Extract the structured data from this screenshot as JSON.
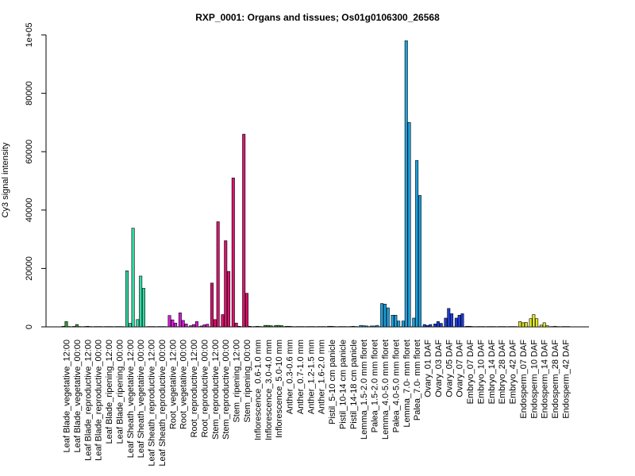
{
  "chart_data": {
    "type": "bar",
    "title": "RXP_0001: Organs and tissues; Os01g0106300_26568",
    "xlabel": "",
    "ylabel": "Cy3 signal intensity",
    "ylim": [
      0,
      100000
    ],
    "yticks": [
      "0",
      "20000",
      "40000",
      "60000",
      "80000",
      "1e+05"
    ],
    "ytick_values": [
      0,
      20000,
      40000,
      60000,
      80000,
      100000
    ],
    "grid": false,
    "legend": "none",
    "categories": [
      "Leaf Blade_vegetative_12:00",
      "Leaf Blade_vegetative_00:00",
      "Leaf Blade_reproductive_12:00",
      "Leaf Blade_reproductive_00:00",
      "Leaf Blade_ripening_12:00",
      "Leaf Blade_ripening_00:00",
      "Leaf Sheath_vegetative_12:00",
      "Leaf Sheath_vegetative_00:00",
      "Leaf Sheath_reproductive_12:00",
      "Leaf Sheath_reproductive_00:00",
      "Root_vegetative_12:00",
      "Root_vegetative_00:00",
      "Root_reproductive_12:00",
      "Root_reproductive_00:00",
      "Stem_reproductive_12:00",
      "Stem_reproductive_00:00",
      "Stem_ripening_12:00",
      "Stem_ripening_00:00",
      "Inflorescence_0.6-1.0 mm",
      "Inflorescence_3.0-4.0 mm",
      "Inflorescence_5.0-10 mm",
      "Anther_0.3-0.6 mm",
      "Anther_0.7-1.0 mm",
      "Anther_1.2-1.5 mm",
      "Anther_1.6-2.0 mm",
      "Pistil_5-10 cm panicle",
      "Pistil_10-14 cm panicle",
      "Pistil_14-18 cm panicle",
      "Lemma_1.5-2.0 mm floret",
      "Palea_1.5-2.0 mm floret",
      "Lemma_4.0-5.0 mm floret",
      "Palea_4.0-5.0 mm floret",
      "Lemma_7.0- mm floret",
      "Palea_7.0- mm floret",
      "Ovary_01 DAF",
      "Ovary_03 DAF",
      "Ovary_05 DAF",
      "Ovary_07 DAF",
      "Embryo_07 DAF",
      "Embryo_10 DAF",
      "Embryo_14 DAF",
      "Embryo_28 DAF",
      "Embryo_42 DAF",
      "Endosperm_07 DAF",
      "Endosperm_10 DAF",
      "Endosperm_14 DAF",
      "Endosperm_28 DAF",
      "Endosperm_42 DAF"
    ],
    "group_colors": [
      "#2e9b2e",
      "#2e9b2e",
      "#2e9b2e",
      "#2e9b2e",
      "#2e9b2e",
      "#2e9b2e",
      "#34d9a5",
      "#34d9a5",
      "#34d9a5",
      "#34d9a5",
      "#d21fd2",
      "#d21fd2",
      "#d21fd2",
      "#d21fd2",
      "#d8146f",
      "#d8146f",
      "#d8146f",
      "#d8146f",
      "#2e9b2e",
      "#2e9b2e",
      "#2e9b2e",
      "#2e9b2e",
      "#2e9b2e",
      "#2e9b2e",
      "#2e9b2e",
      "#2e9b2e",
      "#2e9b2e",
      "#2e9b2e",
      "#1f9fdc",
      "#1f9fdc",
      "#1f9fdc",
      "#1f9fdc",
      "#1f9fdc",
      "#1f9fdc",
      "#1f3ed6",
      "#1f3ed6",
      "#1f3ed6",
      "#1f3ed6",
      "#2e9b2e",
      "#2e9b2e",
      "#2e9b2e",
      "#2e9b2e",
      "#2e9b2e",
      "#e0e622",
      "#e0e622",
      "#e0e622",
      "#e0e622",
      "#e0e622"
    ],
    "values": [
      [
        200,
        1800,
        100
      ],
      [
        150,
        800,
        100
      ],
      [
        100,
        200,
        100
      ],
      [
        100,
        100,
        100
      ],
      [
        100,
        100,
        100
      ],
      [
        100,
        100,
        100
      ],
      [
        19200,
        1200,
        33800
      ],
      [
        2500,
        17400,
        13200
      ],
      [
        100,
        100,
        100
      ],
      [
        100,
        100,
        100
      ],
      [
        3900,
        2400,
        1300
      ],
      [
        4800,
        2200,
        1000
      ],
      [
        400,
        800,
        1800
      ],
      [
        300,
        700,
        900
      ],
      [
        15000,
        2500,
        36000
      ],
      [
        4200,
        29500,
        19000
      ],
      [
        51000,
        1300,
        200
      ],
      [
        66000,
        11500,
        200
      ],
      [
        100,
        200,
        100
      ],
      [
        500,
        500,
        400
      ],
      [
        500,
        500,
        400
      ],
      [
        200,
        200,
        100
      ],
      [
        100,
        100,
        100
      ],
      [
        100,
        100,
        100
      ],
      [
        100,
        100,
        100
      ],
      [
        200,
        200,
        100
      ],
      [
        100,
        100,
        100
      ],
      [
        100,
        200,
        100
      ],
      [
        500,
        400,
        300
      ],
      [
        300,
        300,
        500
      ],
      [
        8000,
        7800,
        6500
      ],
      [
        4000,
        4000,
        2000
      ],
      [
        2000,
        98000,
        70000
      ],
      [
        3000,
        57000,
        45000
      ],
      [
        800,
        500,
        800
      ],
      [
        1000,
        1800,
        1200
      ],
      [
        3000,
        6300,
        4500
      ],
      [
        3000,
        4000,
        4500
      ],
      [
        200,
        200,
        100
      ],
      [
        100,
        100,
        100
      ],
      [
        100,
        100,
        100
      ],
      [
        100,
        100,
        100
      ],
      [
        100,
        100,
        100
      ],
      [
        1800,
        1400,
        1500
      ],
      [
        2800,
        4200,
        2800
      ],
      [
        600,
        1400,
        400
      ],
      [
        100,
        200,
        100
      ],
      [
        100,
        100,
        100
      ]
    ]
  }
}
